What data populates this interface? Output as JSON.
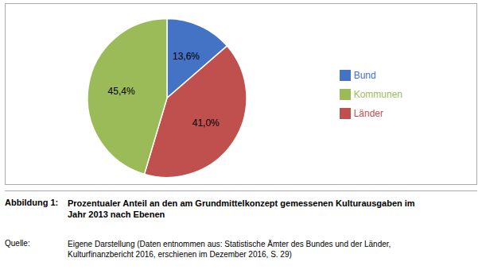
{
  "chart_data": {
    "type": "pie",
    "categories": [
      "Bund",
      "Länder",
      "Kommunen"
    ],
    "values": [
      13.6,
      41.0,
      45.4
    ],
    "value_labels": [
      "13,6%",
      "41,0%",
      "45,4%"
    ],
    "colors": [
      "#4472C4",
      "#C0504D",
      "#9BBB59"
    ],
    "data_labels": true,
    "legend": "right",
    "annotations": [
      "Abbildung 1:",
      "Prozentualer Anteil an den am Grundmittelkonzept gemessenen Kulturausgaben im\nJahr 2013 nach Ebenen",
      "Quelle:",
      "Eigene Darstellung (Daten entnommen aus: Statistische Ämter des Bundes und der Länder,\nKulturfinanzbericht 2016, erschienen im Dezember 2016, S. 29)"
    ]
  }
}
